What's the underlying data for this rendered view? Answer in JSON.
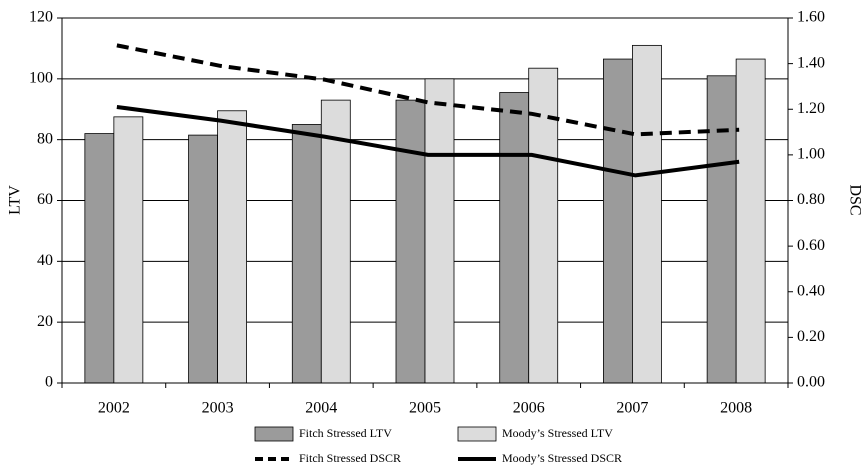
{
  "chart_data": {
    "type": "bar",
    "y_label": "LTV",
    "y2_label": "DSC",
    "categories": [
      "2002",
      "2003",
      "2004",
      "2005",
      "2006",
      "2007",
      "2008"
    ],
    "series": [
      {
        "name": "Fitch Stressed LTV",
        "type": "bar",
        "color": "#9b9b9b",
        "values": [
          82,
          81.5,
          85,
          93,
          95.5,
          106.5,
          101
        ]
      },
      {
        "name": "Moody’s Stressed LTV",
        "type": "bar",
        "color": "#dcdcdc",
        "values": [
          87.5,
          89.5,
          93,
          100,
          103.5,
          111,
          106.5
        ]
      },
      {
        "name": "Fitch Stressed DSCR",
        "type": "line",
        "style": "dashed",
        "axis": "y2",
        "color": "#000000",
        "values": [
          1.48,
          1.39,
          1.33,
          1.23,
          1.18,
          1.09,
          1.11
        ]
      },
      {
        "name": "Moody’s Stressed DSCR",
        "type": "line",
        "style": "solid",
        "axis": "y2",
        "color": "#000000",
        "values": [
          1.21,
          1.15,
          1.08,
          1.0,
          1.0,
          0.91,
          0.97
        ]
      }
    ],
    "ylim": [
      0,
      120
    ],
    "yticks": [
      0,
      20,
      40,
      60,
      80,
      100,
      120
    ],
    "y2lim": [
      0,
      1.6
    ],
    "y2ticks": [
      {
        "value": 0,
        "label": "0.00"
      },
      {
        "value": 0.2,
        "label": "0.20"
      },
      {
        "value": 0.4,
        "label": "0.40"
      },
      {
        "value": 0.6,
        "label": "0.60"
      },
      {
        "value": 0.8,
        "label": "0.80"
      },
      {
        "value": 1.0,
        "label": "1.00"
      },
      {
        "value": 1.2,
        "label": "1.20"
      },
      {
        "value": 1.4,
        "label": "1.40"
      },
      {
        "value": 1.6,
        "label": "1.60"
      }
    ],
    "grid": true
  }
}
